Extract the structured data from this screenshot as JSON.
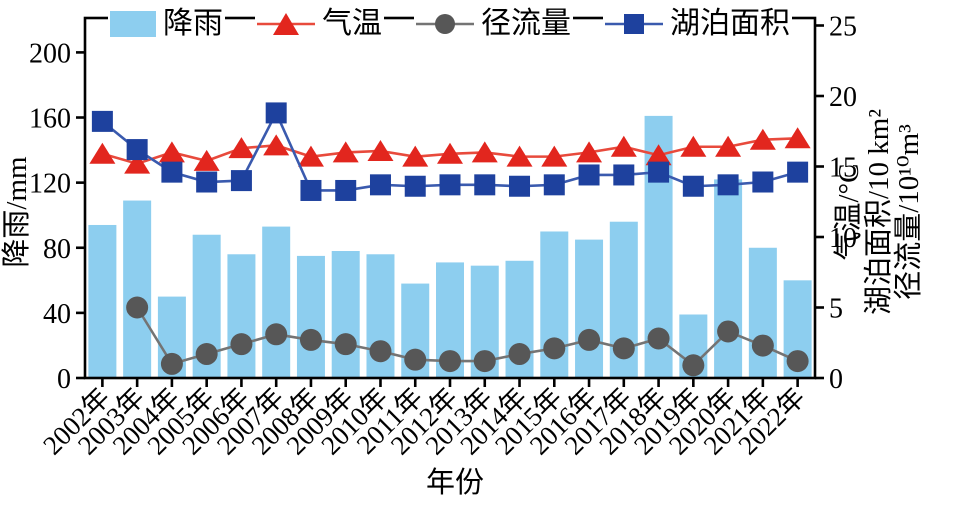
{
  "legend": {
    "items": [
      {
        "label": "降雨",
        "type": "bar",
        "color": "#8DCEEF"
      },
      {
        "label": "气温",
        "type": "triangle",
        "color": "#E2261E",
        "line_color": "#E84A3C"
      },
      {
        "label": "径流量",
        "type": "circle",
        "color": "#575757",
        "line_color": "#747474"
      },
      {
        "label": "湖泊面积",
        "type": "square",
        "color": "#1E419E",
        "line_color": "#3A5AAE"
      }
    ]
  },
  "chart_data": {
    "type": "bar+line combo, dual axis",
    "x_categories": [
      "2002年",
      "2003年",
      "2004年",
      "2005年",
      "2006年",
      "2007年",
      "2008年",
      "2009年",
      "2010年",
      "2011年",
      "2012年",
      "2013年",
      "2014年",
      "2015年",
      "2016年",
      "2017年",
      "2018年",
      "2019年",
      "2020年",
      "2021年",
      "2022年"
    ],
    "xlabel": "年份",
    "left_axis": {
      "label": "降雨/mm",
      "ticks": [
        0,
        40,
        80,
        120,
        160,
        200
      ],
      "range": [
        0,
        221
      ]
    },
    "right_axis": {
      "labels": [
        "气温/°C",
        "湖泊面积/10 km²",
        "径流量/10¹⁰m³"
      ],
      "ticks": [
        0,
        5,
        10,
        15,
        20,
        25
      ],
      "range": [
        0,
        25.5
      ]
    },
    "grid": "off",
    "legend_position": "top center, no frame",
    "series": [
      {
        "name": "降雨",
        "type": "bar",
        "axis": "left",
        "unit": "mm",
        "color": "#8DCEEF",
        "values": [
          94,
          109,
          50,
          88,
          76,
          93,
          75,
          78,
          76,
          58,
          71,
          69,
          72,
          90,
          85,
          96,
          161,
          39,
          122,
          80,
          60
        ]
      },
      {
        "name": "气温",
        "type": "line",
        "marker": "triangle",
        "axis": "right",
        "unit": "°C",
        "color": "#E2261E",
        "line_color": "#E84A3C",
        "values": [
          15.9,
          15.2,
          16.0,
          15.4,
          16.3,
          16.5,
          15.7,
          16.0,
          16.1,
          15.7,
          15.9,
          16.0,
          15.7,
          15.7,
          16.0,
          16.4,
          15.8,
          16.4,
          16.4,
          16.9,
          17.0
        ]
      },
      {
        "name": "径流量",
        "type": "line",
        "marker": "circle",
        "axis": "right",
        "unit": "10¹⁰m³",
        "color": "#575757",
        "line_color": "#747474",
        "values": [
          null,
          5.0,
          1.0,
          1.7,
          2.4,
          3.1,
          2.7,
          2.4,
          1.9,
          1.3,
          1.2,
          1.2,
          1.7,
          2.1,
          2.7,
          2.1,
          2.8,
          0.9,
          3.3,
          2.3,
          1.2
        ]
      },
      {
        "name": "湖泊面积",
        "type": "line",
        "marker": "square",
        "axis": "right",
        "unit": "10 km²",
        "color": "#1E419E",
        "line_color": "#3A5AAE",
        "values": [
          18.2,
          16.2,
          14.6,
          13.9,
          14.0,
          18.8,
          13.3,
          13.3,
          13.7,
          13.6,
          13.7,
          13.7,
          13.6,
          13.7,
          14.4,
          14.4,
          14.6,
          13.6,
          13.7,
          13.9,
          14.6
        ]
      }
    ]
  }
}
